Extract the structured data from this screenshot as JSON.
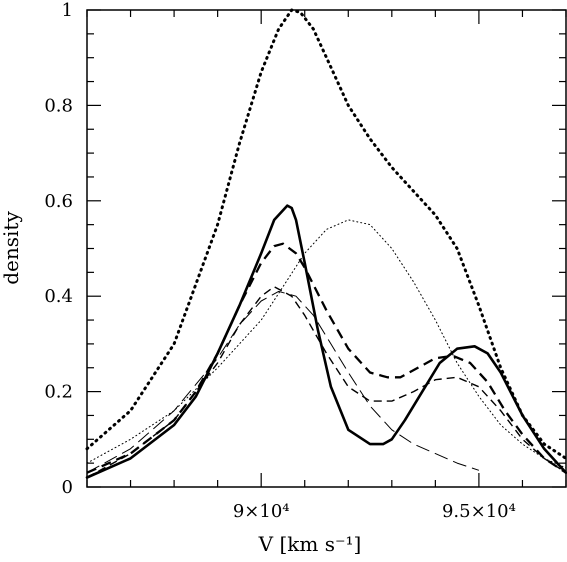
{
  "chart_data": {
    "type": "line",
    "title": "",
    "xlabel": "V [km s⁻¹]",
    "ylabel": "density",
    "xlim": [
      86000,
      97000
    ],
    "ylim": [
      0,
      1
    ],
    "grid": false,
    "legend": "none",
    "x_ticks": [
      {
        "value": 90000,
        "label": "9×10⁴"
      },
      {
        "value": 95000,
        "label": "9.5×10⁴"
      }
    ],
    "y_ticks": [
      {
        "value": 0,
        "label": "0"
      },
      {
        "value": 0.2,
        "label": "0.2"
      },
      {
        "value": 0.4,
        "label": "0.4"
      },
      {
        "value": 0.6,
        "label": "0.6"
      },
      {
        "value": 0.8,
        "label": "0.8"
      },
      {
        "value": 1,
        "label": "1"
      }
    ],
    "series": [
      {
        "style": "thick-dotted",
        "x": [
          86000,
          87000,
          88000,
          89000,
          89500,
          90000,
          90400,
          90700,
          90900,
          91200,
          91600,
          92000,
          92500,
          93000,
          93500,
          94000,
          94500,
          95000,
          95500,
          96000,
          96500,
          97000
        ],
        "y": [
          0.08,
          0.16,
          0.3,
          0.55,
          0.72,
          0.87,
          0.96,
          1.0,
          0.995,
          0.96,
          0.88,
          0.8,
          0.73,
          0.67,
          0.62,
          0.57,
          0.5,
          0.38,
          0.25,
          0.15,
          0.09,
          0.06
        ]
      },
      {
        "style": "thin-dotted",
        "x": [
          86000,
          87000,
          88000,
          89000,
          90000,
          90500,
          91000,
          91500,
          92000,
          92500,
          93000,
          93500,
          94000,
          94500,
          95000,
          95500,
          96000,
          96500,
          97000
        ],
        "y": [
          0.05,
          0.1,
          0.16,
          0.25,
          0.35,
          0.42,
          0.49,
          0.54,
          0.56,
          0.55,
          0.5,
          0.43,
          0.35,
          0.26,
          0.19,
          0.13,
          0.09,
          0.06,
          0.04
        ]
      },
      {
        "style": "thick-solid",
        "x": [
          86000,
          87000,
          88000,
          88500,
          89000,
          89500,
          90000,
          90300,
          90600,
          90700,
          90800,
          91000,
          91300,
          91600,
          92000,
          92500,
          92800,
          93000,
          93300,
          93700,
          94100,
          94500,
          94900,
          95200,
          95500,
          96000,
          96500,
          97000
        ],
        "y": [
          0.02,
          0.06,
          0.13,
          0.19,
          0.28,
          0.38,
          0.49,
          0.56,
          0.59,
          0.585,
          0.56,
          0.47,
          0.33,
          0.21,
          0.12,
          0.09,
          0.09,
          0.1,
          0.14,
          0.2,
          0.26,
          0.29,
          0.295,
          0.28,
          0.24,
          0.15,
          0.08,
          0.03
        ]
      },
      {
        "style": "thick-dashed",
        "x": [
          86000,
          87000,
          88000,
          88500,
          89000,
          89500,
          90000,
          90300,
          90500,
          90800,
          91000,
          91500,
          92000,
          92500,
          92900,
          93200,
          93600,
          94000,
          94400,
          94800,
          95200,
          95600,
          96000,
          96500,
          97000
        ],
        "y": [
          0.03,
          0.07,
          0.14,
          0.2,
          0.28,
          0.38,
          0.47,
          0.505,
          0.51,
          0.49,
          0.46,
          0.37,
          0.29,
          0.24,
          0.23,
          0.23,
          0.25,
          0.27,
          0.275,
          0.26,
          0.22,
          0.16,
          0.11,
          0.06,
          0.03
        ]
      },
      {
        "style": "thin-dashed",
        "x": [
          86000,
          87000,
          88000,
          89000,
          89500,
          90000,
          90300,
          90700,
          91000,
          91500,
          92000,
          92500,
          93000,
          93500,
          94000,
          94500,
          95000,
          95500,
          96000,
          96500,
          97000
        ],
        "y": [
          0.02,
          0.07,
          0.14,
          0.26,
          0.34,
          0.4,
          0.42,
          0.4,
          0.36,
          0.28,
          0.21,
          0.18,
          0.18,
          0.2,
          0.225,
          0.23,
          0.21,
          0.16,
          0.1,
          0.06,
          0.03
        ]
      },
      {
        "style": "thin-long-dashed",
        "x": [
          86000,
          87000,
          88000,
          89000,
          89500,
          90000,
          90400,
          90800,
          91200,
          91600,
          92000,
          92500,
          93000,
          93500,
          94000,
          94500,
          95000
        ],
        "y": [
          0.03,
          0.08,
          0.16,
          0.27,
          0.34,
          0.39,
          0.41,
          0.4,
          0.36,
          0.3,
          0.24,
          0.17,
          0.12,
          0.09,
          0.07,
          0.05,
          0.035
        ]
      }
    ]
  }
}
